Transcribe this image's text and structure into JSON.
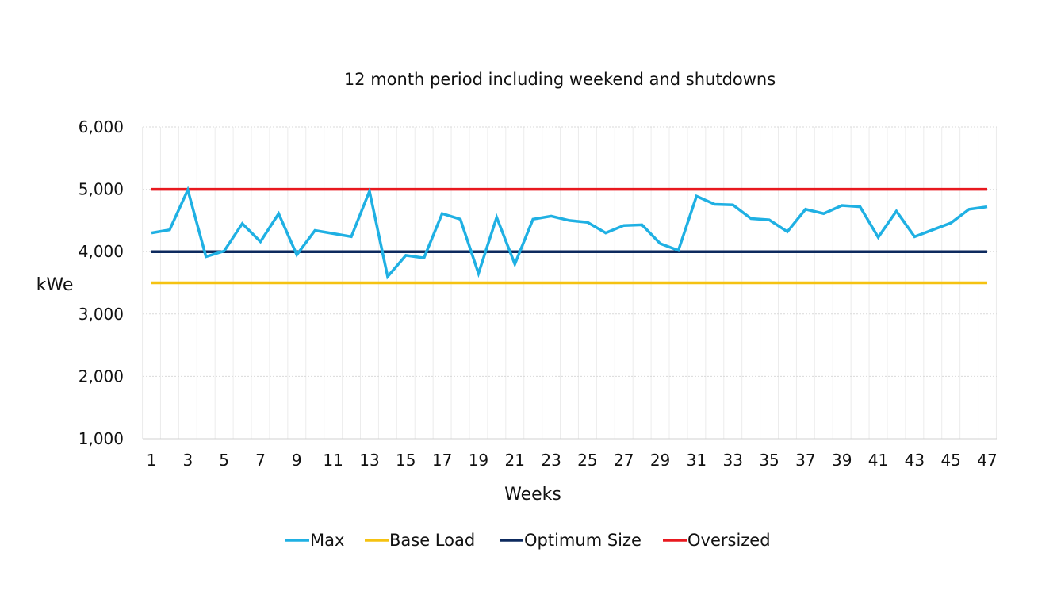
{
  "chart_data": {
    "type": "line",
    "title": "12 month period including weekend and shutdowns",
    "xlabel": "Weeks",
    "ylabel": "kWe",
    "x": [
      1,
      2,
      3,
      4,
      5,
      6,
      7,
      8,
      9,
      10,
      11,
      12,
      13,
      14,
      15,
      16,
      17,
      18,
      19,
      20,
      21,
      22,
      23,
      24,
      25,
      26,
      27,
      28,
      29,
      30,
      31,
      32,
      33,
      34,
      35,
      36,
      37,
      38,
      39,
      40,
      41,
      42,
      43,
      44,
      45,
      46,
      47
    ],
    "x_tick_labels": [
      "1",
      "3",
      "5",
      "7",
      "9",
      "11",
      "13",
      "15",
      "17",
      "19",
      "21",
      "23",
      "25",
      "27",
      "29",
      "31",
      "33",
      "35",
      "37",
      "39",
      "41",
      "43",
      "45",
      "47"
    ],
    "ylim": [
      1000,
      6000
    ],
    "y_ticks": [
      1000,
      2000,
      3000,
      4000,
      5000,
      6000
    ],
    "y_tick_labels": [
      "1,000",
      "2,000",
      "3,000",
      "4,000",
      "5,000",
      "6,000"
    ],
    "grid": true,
    "legend_position": "bottom",
    "series": [
      {
        "name": "Max",
        "color": "#1fb0e3",
        "values": [
          4300,
          4350,
          4990,
          3920,
          4010,
          4450,
          4160,
          4610,
          3950,
          4340,
          4290,
          4240,
          4970,
          3600,
          3940,
          3900,
          4610,
          4520,
          3650,
          4550,
          3800,
          4520,
          4570,
          4500,
          4470,
          4300,
          4420,
          4430,
          4130,
          4020,
          4890,
          4760,
          4750,
          4530,
          4510,
          4320,
          4680,
          4610,
          4740,
          4720,
          4230,
          4650,
          4240,
          4350,
          4460,
          4680,
          4720
        ]
      },
      {
        "name": "Base Load",
        "color": "#f5c211",
        "values": [
          3500,
          3500,
          3500,
          3500,
          3500,
          3500,
          3500,
          3500,
          3500,
          3500,
          3500,
          3500,
          3500,
          3500,
          3500,
          3500,
          3500,
          3500,
          3500,
          3500,
          3500,
          3500,
          3500,
          3500,
          3500,
          3500,
          3500,
          3500,
          3500,
          3500,
          3500,
          3500,
          3500,
          3500,
          3500,
          3500,
          3500,
          3500,
          3500,
          3500,
          3500,
          3500,
          3500,
          3500,
          3500,
          3500,
          3500
        ]
      },
      {
        "name": "Optimum Size",
        "color": "#0d2a5e",
        "values": [
          4000,
          4000,
          4000,
          4000,
          4000,
          4000,
          4000,
          4000,
          4000,
          4000,
          4000,
          4000,
          4000,
          4000,
          4000,
          4000,
          4000,
          4000,
          4000,
          4000,
          4000,
          4000,
          4000,
          4000,
          4000,
          4000,
          4000,
          4000,
          4000,
          4000,
          4000,
          4000,
          4000,
          4000,
          4000,
          4000,
          4000,
          4000,
          4000,
          4000,
          4000,
          4000,
          4000,
          4000,
          4000,
          4000,
          4000
        ]
      },
      {
        "name": "Oversized",
        "color": "#e8191f",
        "values": [
          5000,
          5000,
          5000,
          5000,
          5000,
          5000,
          5000,
          5000,
          5000,
          5000,
          5000,
          5000,
          5000,
          5000,
          5000,
          5000,
          5000,
          5000,
          5000,
          5000,
          5000,
          5000,
          5000,
          5000,
          5000,
          5000,
          5000,
          5000,
          5000,
          5000,
          5000,
          5000,
          5000,
          5000,
          5000,
          5000,
          5000,
          5000,
          5000,
          5000,
          5000,
          5000,
          5000,
          5000,
          5000,
          5000,
          5000
        ]
      }
    ],
    "legend_order": [
      "Max",
      "Base Load",
      "Optimum Size",
      "Oversized"
    ],
    "gridline_color": "#d9d9d9"
  }
}
